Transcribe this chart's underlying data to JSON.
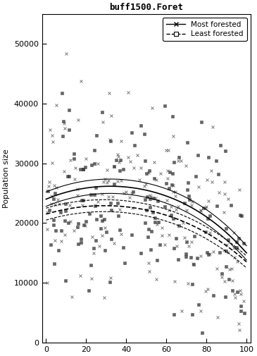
{
  "title": "buff1500.Foret",
  "ylabel": "Population size",
  "xlabel": "",
  "xlim": [
    -2,
    102
  ],
  "ylim": [
    0,
    55000
  ],
  "yticks": [
    0,
    10000,
    20000,
    30000,
    40000,
    50000
  ],
  "xticks": [
    0,
    20,
    40,
    60,
    80,
    100
  ],
  "background_color": "#ffffff",
  "legend_most": "Most forested",
  "legend_least": "Least forested",
  "seed": 42,
  "n_points": 350,
  "ci_band_most": 1200,
  "ci_band_least": 1000,
  "scatter_std": 8000,
  "title_fontsize": 9,
  "axis_fontsize": 8,
  "tick_fontsize": 8
}
